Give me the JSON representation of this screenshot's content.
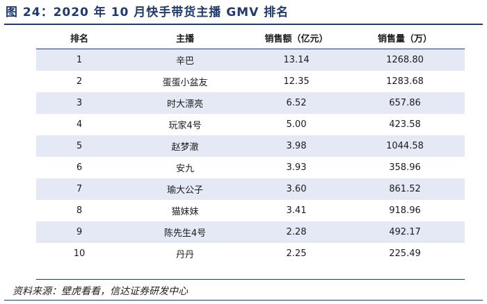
{
  "title": "图 24：2020 年 10 月快手带货主播 GMV 排名",
  "table": {
    "headers": [
      "排名",
      "主播",
      "销售额（亿元）",
      "销售量（万）"
    ],
    "rows": [
      [
        "1",
        "辛巴",
        "13.14",
        "1268.80"
      ],
      [
        "2",
        "蛋蛋小盆友",
        "12.35",
        "1283.68"
      ],
      [
        "3",
        "时大漂亮",
        "6.52",
        "657.86"
      ],
      [
        "4",
        "玩家4号",
        "5.00",
        "423.58"
      ],
      [
        "5",
        "赵梦澈",
        "3.98",
        "1044.58"
      ],
      [
        "6",
        "安九",
        "3.93",
        "358.96"
      ],
      [
        "7",
        "瑜大公子",
        "3.60",
        "861.52"
      ],
      [
        "8",
        "猫妹妹",
        "3.41",
        "918.96"
      ],
      [
        "9",
        "陈先生4号",
        "2.28",
        "492.17"
      ],
      [
        "10",
        "丹丹",
        "2.25",
        "225.49"
      ]
    ]
  },
  "source": "资料来源：壁虎看看，信达证券研发中心",
  "colors": {
    "title": "#1e3a6e",
    "row_shade": "#e4e9f5",
    "rule": "#1e3a6e"
  }
}
